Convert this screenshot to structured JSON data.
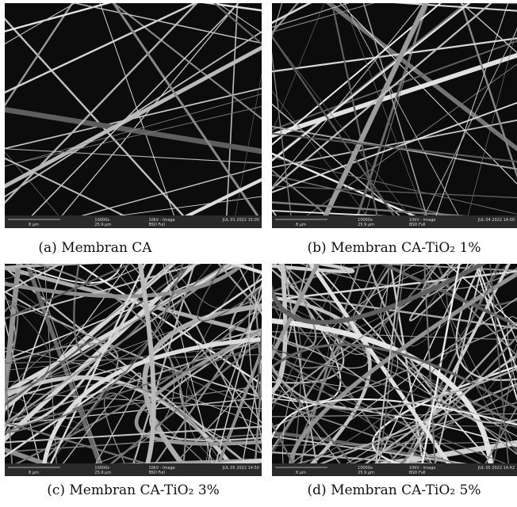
{
  "panels": [
    {
      "caption": "(a)   Membran CA",
      "info": {
        "scale": "8 µm",
        "magnification": "10000x",
        "field": "25.9 µm",
        "mode": "10kV - Image",
        "detector": "BSD Full",
        "date": "JUL 01 2022 15:00"
      }
    },
    {
      "caption": "(b) Membran CA-TiO₂ 1%",
      "info": {
        "scale": "8 µm",
        "magnification": "10000x",
        "field": "25.9 µm",
        "mode": "10kV - Image",
        "detector": "BSD Full",
        "date": "JUL 04 2022 14:00"
      }
    },
    {
      "caption": "(c)  Membran CA-TiO₂ 3%",
      "info": {
        "scale": "8 µm",
        "magnification": "10000x",
        "field": "25.9 µm",
        "mode": "10kV - Image",
        "detector": "BSD Full",
        "date": "JUL 05 2022 14:50"
      }
    },
    {
      "caption": "(d) Membran CA-TiO₂ 5%",
      "info": {
        "scale": "8 µm",
        "magnification": "10000x",
        "field": "25.9 µm",
        "mode": "10kV - Image",
        "detector": "BSD Full",
        "date": "JUL 05 2022 14:42"
      }
    }
  ]
}
